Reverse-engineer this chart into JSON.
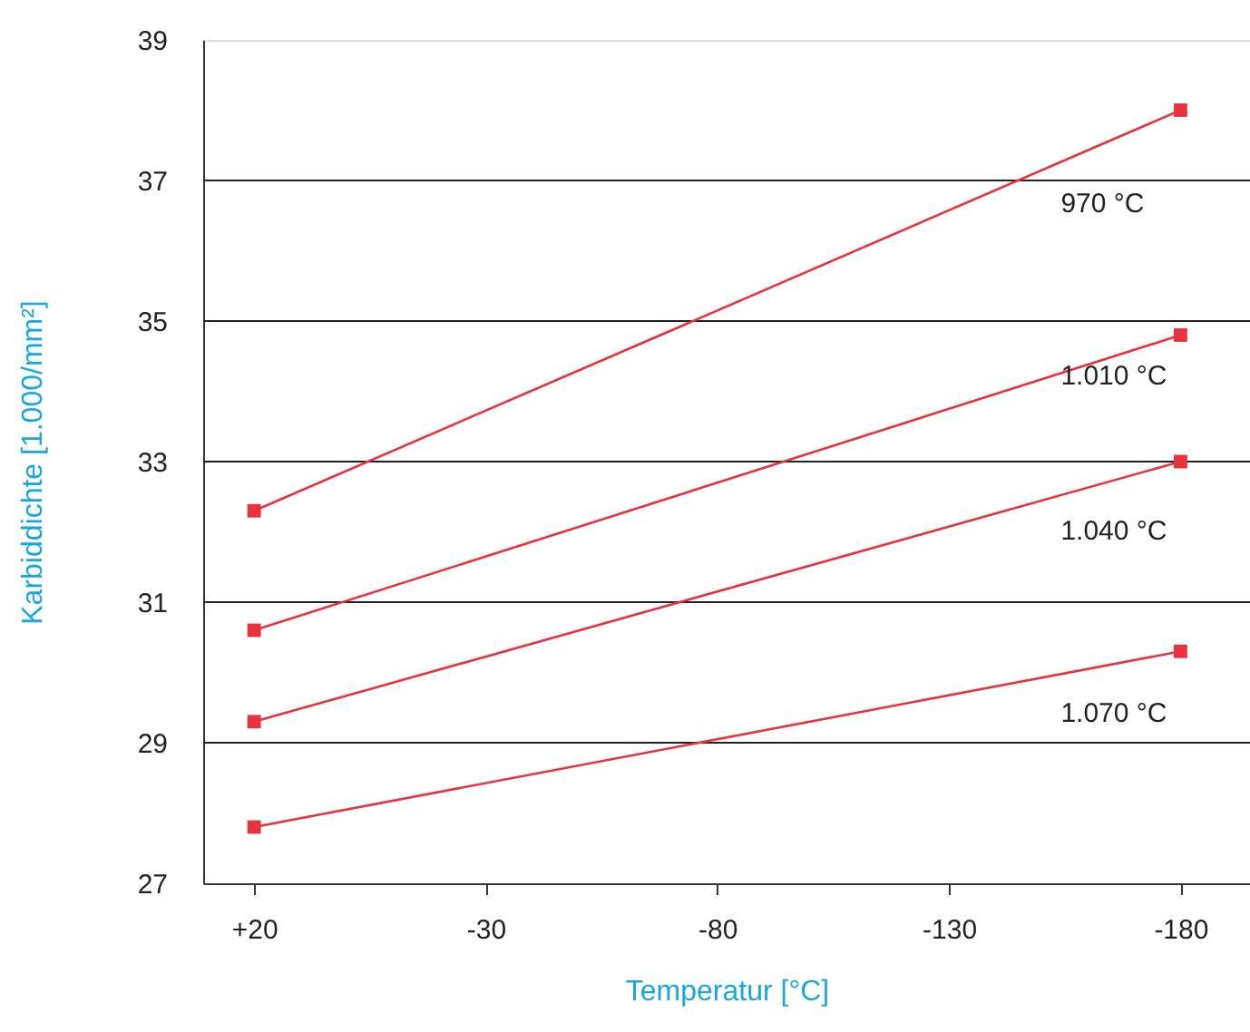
{
  "chart_data": {
    "type": "line",
    "xlabel": "Temperatur [°C]",
    "ylabel": "Karbiddichte [1.000/mm²]",
    "x": [
      20,
      -180
    ],
    "series": [
      {
        "name": "970 °C",
        "color": "#e8323c",
        "values": [
          32.3,
          38.0
        ]
      },
      {
        "name": "1.010 °C",
        "color": "#e8323c",
        "values": [
          30.6,
          34.8
        ]
      },
      {
        "name": "1.040 °C",
        "color": "#e8323c",
        "values": [
          29.3,
          33.0
        ]
      },
      {
        "name": "1.070 °C",
        "color": "#e8323c",
        "values": [
          27.8,
          30.3
        ]
      }
    ],
    "xlim": [
      31,
      -195
    ],
    "xticks": [
      {
        "value": 20,
        "label": "+20"
      },
      -30,
      -80,
      -130,
      -180
    ],
    "ylim": [
      27,
      39
    ],
    "yticks": [
      27,
      29,
      31,
      33,
      35,
      37,
      39
    ],
    "grid": "y",
    "marker": "square",
    "line_style": "solid"
  }
}
